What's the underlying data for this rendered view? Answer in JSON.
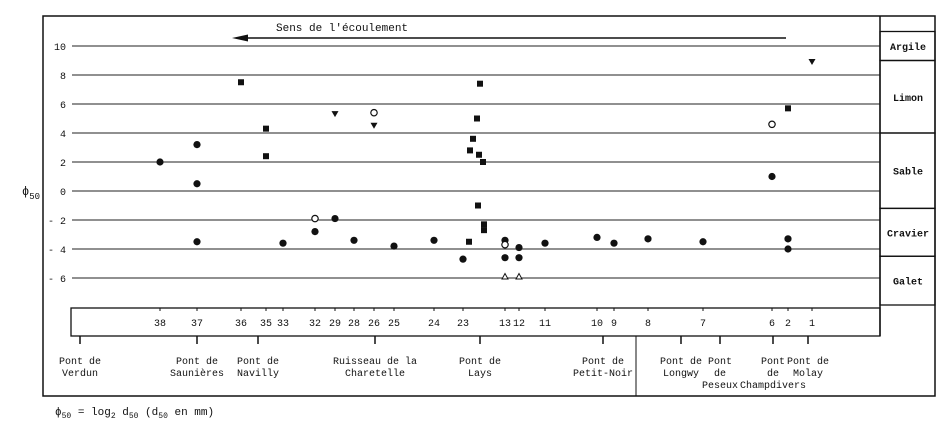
{
  "chart_data": {
    "type": "scatter",
    "title": "Sens de l'écoulement",
    "ylabel": "ϕ50",
    "ylim": [
      -8,
      11
    ],
    "yticks": [
      10,
      8,
      6,
      4,
      2,
      0,
      -2,
      -4,
      -6
    ],
    "ytick_labels": [
      "10",
      "8",
      "6",
      "4",
      "2",
      "0",
      "- 2",
      "- 4",
      "- 6"
    ],
    "grid": true,
    "classes": [
      {
        "label": "Argile",
        "range": [
          9,
          11
        ]
      },
      {
        "label": "Limon",
        "range": [
          4,
          9
        ]
      },
      {
        "label": "Sable",
        "range": [
          -1.2,
          4
        ]
      },
      {
        "label": "Cravier",
        "range": [
          -4.5,
          -1.2
        ]
      },
      {
        "label": "Galet",
        "range": [
          -8,
          -4.5
        ]
      }
    ],
    "stations": [
      "38",
      "37",
      "36",
      "35",
      "33",
      "32",
      "29",
      "28",
      "26",
      "25",
      "24",
      "23",
      "13",
      "12",
      "11",
      "10",
      "9",
      "8",
      "7",
      "6",
      "2",
      "1"
    ],
    "bridges": [
      {
        "lines": [
          "Pont de",
          "Verdun"
        ]
      },
      {
        "lines": [
          "Pont de",
          "Saunières"
        ]
      },
      {
        "lines": [
          "Pont de",
          "Navilly"
        ]
      },
      {
        "lines": [
          "Ruisseau de la",
          "Charetelle"
        ]
      },
      {
        "lines": [
          "Pont de",
          "Lays"
        ]
      },
      {
        "lines": [
          "Pont de",
          "Petit-Noir"
        ]
      },
      {
        "lines": [
          "Pont de",
          "Longwy"
        ]
      },
      {
        "lines": [
          "Pont",
          "de",
          "Peseux"
        ]
      },
      {
        "lines": [
          "Pont",
          "de",
          "Champdivers"
        ]
      },
      {
        "lines": [
          "Pont de",
          "Molay"
        ]
      }
    ],
    "points": [
      {
        "station": "38",
        "y": 2.0,
        "marker": "circle"
      },
      {
        "station": "37",
        "y": 3.2,
        "marker": "circle"
      },
      {
        "station": "37",
        "y": 0.5,
        "marker": "circle"
      },
      {
        "station": "37",
        "y": -3.5,
        "marker": "circle"
      },
      {
        "station": "36",
        "y": 7.5,
        "marker": "square"
      },
      {
        "station": "35",
        "y": 4.3,
        "marker": "square"
      },
      {
        "station": "35",
        "y": 2.4,
        "marker": "square"
      },
      {
        "station": "33",
        "y": -3.6,
        "marker": "circle"
      },
      {
        "station": "32",
        "y": -1.9,
        "marker": "open-circle"
      },
      {
        "station": "32",
        "y": -2.8,
        "marker": "circle"
      },
      {
        "station": "29",
        "y": 5.3,
        "marker": "triangle-down"
      },
      {
        "station": "29",
        "y": -1.9,
        "marker": "circle"
      },
      {
        "station": "28",
        "y": -3.4,
        "marker": "circle"
      },
      {
        "station": "26",
        "y": 5.4,
        "marker": "open-circle"
      },
      {
        "station": "26",
        "y": 4.5,
        "marker": "triangle-down"
      },
      {
        "station": "25",
        "y": -3.8,
        "marker": "circle"
      },
      {
        "station": "24",
        "y": -3.4,
        "marker": "circle"
      },
      {
        "station": "23",
        "y": -4.7,
        "marker": "circle"
      },
      {
        "station": "23",
        "y": -3.5,
        "marker": "square"
      },
      {
        "station": "23",
        "y": 2.8,
        "marker": "square"
      },
      {
        "station": "23",
        "y": 3.6,
        "marker": "square"
      },
      {
        "station": "23",
        "y": 5.0,
        "marker": "square"
      },
      {
        "station": "23",
        "y": 7.4,
        "marker": "square"
      },
      {
        "station": "23",
        "y": 2.5,
        "marker": "square"
      },
      {
        "station": "23",
        "y": 2.0,
        "marker": "square"
      },
      {
        "station": "23",
        "y": -1.0,
        "marker": "square"
      },
      {
        "station": "23",
        "y": -2.3,
        "marker": "square"
      },
      {
        "station": "23",
        "y": -2.7,
        "marker": "square"
      },
      {
        "station": "13",
        "y": -3.4,
        "marker": "circle"
      },
      {
        "station": "13",
        "y": -3.7,
        "marker": "open-circle"
      },
      {
        "station": "13",
        "y": -4.6,
        "marker": "circle"
      },
      {
        "station": "13",
        "y": -5.9,
        "marker": "open-triangle"
      },
      {
        "station": "12",
        "y": -3.9,
        "marker": "circle"
      },
      {
        "station": "12",
        "y": -4.6,
        "marker": "circle"
      },
      {
        "station": "12",
        "y": -5.9,
        "marker": "open-triangle"
      },
      {
        "station": "11",
        "y": -3.6,
        "marker": "circle"
      },
      {
        "station": "10",
        "y": -3.2,
        "marker": "circle"
      },
      {
        "station": "9",
        "y": -3.6,
        "marker": "circle"
      },
      {
        "station": "8",
        "y": -3.3,
        "marker": "circle"
      },
      {
        "station": "7",
        "y": -3.5,
        "marker": "circle"
      },
      {
        "station": "6",
        "y": 4.6,
        "marker": "open-circle"
      },
      {
        "station": "6",
        "y": 1.0,
        "marker": "circle"
      },
      {
        "station": "2",
        "y": 5.7,
        "marker": "square"
      },
      {
        "station": "2",
        "y": -3.3,
        "marker": "circle"
      },
      {
        "station": "2",
        "y": -4.0,
        "marker": "circle"
      },
      {
        "station": "1",
        "y": 8.9,
        "marker": "triangle-down"
      }
    ],
    "footnote": {
      "phi": "ϕ",
      "sub50": "50",
      "eq": " = log",
      "sub2": "2",
      "d": " d",
      "sub50b": "50",
      "paren1": "   (d",
      "sub50c": "50",
      "paren2": " en mm)"
    }
  }
}
